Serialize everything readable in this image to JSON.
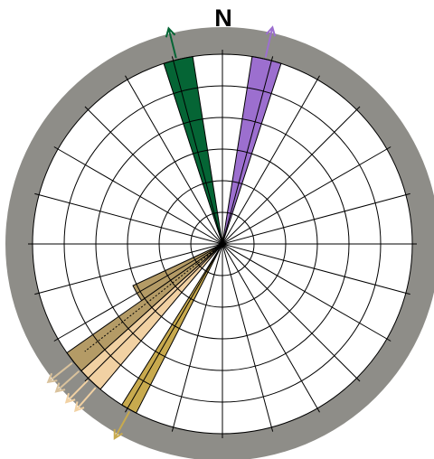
{
  "diagram": {
    "north_label": "N",
    "rings": 6,
    "spokes_every_deg": 15,
    "colors": {
      "frame": "#8e8d88",
      "grid": "#000000",
      "background": "#ffffff"
    },
    "sectors": [
      {
        "id": "green-wedge",
        "from_deg": 342,
        "to_deg": 351,
        "level": 1.0,
        "color": "#056535"
      },
      {
        "id": "purple-wedge",
        "from_deg": 9,
        "to_deg": 18,
        "level": 1.0,
        "color": "#9c6fcf"
      },
      {
        "id": "tan-wedge-outer",
        "from_deg": 228,
        "to_deg": 235,
        "level": 1.0,
        "color": "#b49b66"
      },
      {
        "id": "tan-wedge-inner",
        "from_deg": 235,
        "to_deg": 245,
        "level": 0.52,
        "color": "#b49b66"
      },
      {
        "id": "peach-wedge",
        "from_deg": 220,
        "to_deg": 228,
        "level": 1.0,
        "color": "#f1d1a3"
      },
      {
        "id": "yellow-brown-wedge",
        "from_deg": 207,
        "to_deg": 212,
        "level": 1.0,
        "color": "#c8aa4e"
      }
    ],
    "arrows": [
      {
        "id": "green-arrow",
        "angle_deg": 346,
        "color": "#056535",
        "count": 1
      },
      {
        "id": "purple-arrow",
        "angle_deg": 13,
        "color": "#9c6fcf",
        "count": 1
      },
      {
        "id": "tan-arrows",
        "angle_deg": 230,
        "color": "#d9c29c",
        "count": 2
      },
      {
        "id": "peach-arrows",
        "angle_deg": 223,
        "color": "#f1d1a3",
        "count": 2
      },
      {
        "id": "yellow-arrow",
        "angle_deg": 209,
        "color": "#c8aa4e",
        "count": 1
      }
    ]
  }
}
